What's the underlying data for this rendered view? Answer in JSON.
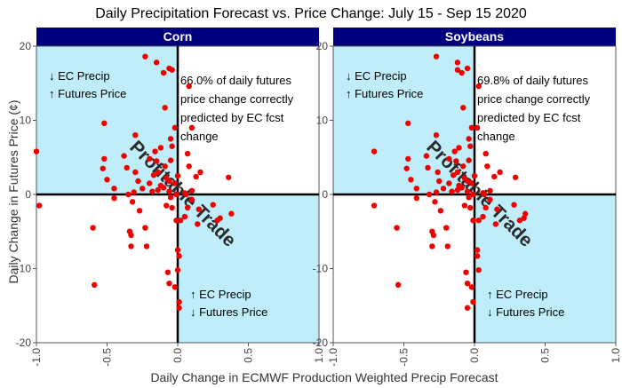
{
  "title": "Daily Precipitation Forecast vs. Price Change: July 15 - Sep 15 2020",
  "ylabel": "Daily Change in Futures Price (¢)",
  "xlabel": "Daily Change in ECMWF Production Weighted Precip Forecast",
  "colors": {
    "strip": "#00007f",
    "quadrant": "#bfeefa",
    "point": "#ee0000",
    "axisline": "#000000"
  },
  "chart_data": [
    {
      "type": "scatter",
      "panel": "Corn",
      "xlim": [
        -1.0,
        1.0
      ],
      "ylim": [
        -20,
        20
      ],
      "x_ticks": [
        "-1.0",
        "-0.5",
        "0.0",
        "0.5",
        "1.0"
      ],
      "y_ticks": [
        "-20",
        "-10",
        "0",
        "10",
        "20"
      ],
      "quadrant_labels": {
        "upper_left": [
          "↓ EC Precip",
          "↑ Futures Price"
        ],
        "lower_right": [
          "↑ EC Precip",
          "↓ Futures Price"
        ]
      },
      "annotation": [
        "66.0% of daily futures",
        "price change correctly",
        "predicted by EC fcst",
        "change"
      ],
      "diagonal_label": "Profitable Trade",
      "points": [
        [
          -1.0,
          5.8
        ],
        [
          -0.98,
          -1.5
        ],
        [
          -0.6,
          -4.5
        ],
        [
          -0.59,
          -12.2
        ],
        [
          -0.52,
          9.6
        ],
        [
          -0.52,
          4.8
        ],
        [
          -0.53,
          3.5
        ],
        [
          -0.5,
          2.0
        ],
        [
          -0.45,
          -0.5
        ],
        [
          -0.45,
          0.8
        ],
        [
          -0.38,
          5.2
        ],
        [
          -0.36,
          3.6
        ],
        [
          -0.35,
          0.0
        ],
        [
          -0.34,
          -5.0
        ],
        [
          -0.33,
          -7.0
        ],
        [
          -0.33,
          -5.5
        ],
        [
          -0.32,
          -1.0
        ],
        [
          -0.31,
          0.3
        ],
        [
          -0.3,
          8.0
        ],
        [
          -0.3,
          3.0
        ],
        [
          -0.28,
          1.8
        ],
        [
          -0.27,
          -2.2
        ],
        [
          -0.25,
          0.8
        ],
        [
          -0.23,
          -4.5
        ],
        [
          -0.22,
          -7.0
        ],
        [
          -0.2,
          1.5
        ],
        [
          -0.2,
          4.8
        ],
        [
          -0.18,
          0.4
        ],
        [
          -0.17,
          2.6
        ],
        [
          -0.16,
          5.8
        ],
        [
          -0.15,
          4.5
        ],
        [
          -0.14,
          3.0
        ],
        [
          -0.12,
          1.2
        ],
        [
          -0.12,
          6.3
        ],
        [
          -0.1,
          0.9
        ],
        [
          -0.09,
          3.8
        ],
        [
          -0.08,
          2.2
        ],
        [
          -0.06,
          0.4
        ],
        [
          -0.23,
          18.6
        ],
        [
          -0.15,
          17.8
        ],
        [
          -0.1,
          16.4
        ],
        [
          -0.09,
          11.7
        ],
        [
          -0.05,
          7.5
        ],
        [
          -0.06,
          17.0
        ],
        [
          -0.05,
          4.6
        ],
        [
          -0.04,
          -1.8
        ],
        [
          -0.02,
          1.5
        ],
        [
          -0.01,
          0.0
        ],
        [
          0.0,
          2.5
        ],
        [
          -0.01,
          -3.5
        ],
        [
          -0.02,
          -12.5
        ],
        [
          -0.07,
          -10.5
        ],
        [
          -0.06,
          -12.0
        ],
        [
          -0.04,
          16.8
        ],
        [
          -0.04,
          6.5
        ],
        [
          -0.02,
          9.0
        ],
        [
          -0.06,
          1.8
        ],
        [
          -0.05,
          -0.4
        ],
        [
          -0.08,
          -1.5
        ],
        [
          -0.14,
          0.6
        ],
        [
          0.0,
          -7.5
        ],
        [
          0.01,
          -8.3
        ],
        [
          0.01,
          -14.5
        ],
        [
          0.01,
          -15.3
        ],
        [
          0.0,
          -10.2
        ],
        [
          0.02,
          -3.5
        ],
        [
          0.05,
          -3.0
        ],
        [
          0.06,
          0.0
        ],
        [
          0.07,
          -1.8
        ],
        [
          0.07,
          5.5
        ],
        [
          0.08,
          3.8
        ],
        [
          0.1,
          0.5
        ],
        [
          0.1,
          9.0
        ],
        [
          0.1,
          -0.7
        ],
        [
          0.13,
          2.4
        ],
        [
          0.14,
          -4.0
        ],
        [
          0.16,
          3.0
        ],
        [
          0.25,
          -1.4
        ],
        [
          0.28,
          -3.5
        ],
        [
          0.3,
          -3.2
        ],
        [
          0.36,
          2.3
        ],
        [
          0.38,
          -2.6
        ],
        [
          0.08,
          14.6
        ],
        [
          0.05,
          0.2
        ],
        [
          0.15,
          -2.0
        ]
      ]
    },
    {
      "type": "scatter",
      "panel": "Soybeans",
      "xlim": [
        -1.0,
        1.0
      ],
      "ylim": [
        -20,
        20
      ],
      "x_ticks": [
        "-1.0",
        "-0.5",
        "0.0",
        "0.5",
        "1.0"
      ],
      "y_ticks": [
        "-20",
        "-10",
        "0",
        "10",
        "20"
      ],
      "quadrant_labels": {
        "upper_left": [
          "↓ EC Precip",
          "↑ Futures Price"
        ],
        "lower_right": [
          "↑ EC Precip",
          "↓ Futures Price"
        ]
      },
      "annotation": [
        "69.8% of daily futures",
        "price change correctly",
        "predicted by EC fcst",
        "change"
      ],
      "diagonal_label": "Profitable Trade",
      "points": [
        [
          -0.71,
          5.8
        ],
        [
          -0.71,
          -1.5
        ],
        [
          -0.55,
          -4.5
        ],
        [
          -0.54,
          -12.2
        ],
        [
          -0.47,
          9.6
        ],
        [
          -0.47,
          4.8
        ],
        [
          -0.48,
          3.5
        ],
        [
          -0.45,
          2.0
        ],
        [
          -0.41,
          -0.5
        ],
        [
          -0.41,
          0.8
        ],
        [
          -0.34,
          5.2
        ],
        [
          -0.33,
          3.6
        ],
        [
          -0.32,
          0.0
        ],
        [
          -0.3,
          -5.0
        ],
        [
          -0.3,
          -7.0
        ],
        [
          -0.29,
          -5.5
        ],
        [
          -0.28,
          -1.0
        ],
        [
          -0.27,
          0.3
        ],
        [
          -0.27,
          8.0
        ],
        [
          -0.26,
          3.0
        ],
        [
          -0.25,
          1.8
        ],
        [
          -0.24,
          -2.2
        ],
        [
          -0.22,
          0.8
        ],
        [
          -0.2,
          -4.5
        ],
        [
          -0.19,
          -7.0
        ],
        [
          -0.18,
          1.5
        ],
        [
          -0.18,
          4.8
        ],
        [
          -0.16,
          0.4
        ],
        [
          -0.15,
          2.6
        ],
        [
          -0.14,
          5.8
        ],
        [
          -0.13,
          4.5
        ],
        [
          -0.12,
          3.0
        ],
        [
          -0.11,
          1.2
        ],
        [
          -0.11,
          6.3
        ],
        [
          -0.09,
          0.9
        ],
        [
          -0.08,
          3.8
        ],
        [
          -0.07,
          2.2
        ],
        [
          -0.05,
          0.4
        ],
        [
          -0.27,
          18.6
        ],
        [
          -0.12,
          17.8
        ],
        [
          -0.09,
          16.4
        ],
        [
          -0.08,
          11.7
        ],
        [
          -0.04,
          7.5
        ],
        [
          -0.05,
          17.0
        ],
        [
          -0.04,
          4.6
        ],
        [
          -0.03,
          -1.8
        ],
        [
          -0.02,
          1.5
        ],
        [
          -0.01,
          0.0
        ],
        [
          0.0,
          2.5
        ],
        [
          -0.01,
          -3.5
        ],
        [
          -0.02,
          -12.5
        ],
        [
          -0.06,
          -10.5
        ],
        [
          -0.05,
          -12.0
        ],
        [
          -0.12,
          16.8
        ],
        [
          -0.03,
          6.5
        ],
        [
          -0.02,
          9.0
        ],
        [
          -0.05,
          1.8
        ],
        [
          -0.04,
          -0.4
        ],
        [
          -0.07,
          -1.5
        ],
        [
          -0.12,
          0.6
        ],
        [
          0.02,
          -7.5
        ],
        [
          0.02,
          -8.3
        ],
        [
          -0.01,
          -14.5
        ],
        [
          -0.05,
          -15.3
        ],
        [
          0.03,
          -10.2
        ],
        [
          0.03,
          -3.5
        ],
        [
          0.06,
          -3.0
        ],
        [
          0.07,
          0.0
        ],
        [
          0.08,
          -1.8
        ],
        [
          0.08,
          5.5
        ],
        [
          0.09,
          3.8
        ],
        [
          0.11,
          0.5
        ],
        [
          0.02,
          9.0
        ],
        [
          0.11,
          -0.7
        ],
        [
          0.14,
          2.4
        ],
        [
          0.15,
          -4.0
        ],
        [
          0.18,
          3.0
        ],
        [
          0.28,
          -1.4
        ],
        [
          0.32,
          -3.5
        ],
        [
          0.35,
          -3.2
        ],
        [
          0.29,
          2.3
        ],
        [
          0.36,
          -2.6
        ],
        [
          0.03,
          14.6
        ],
        [
          0.06,
          0.2
        ],
        [
          0.16,
          -2.0
        ]
      ]
    }
  ]
}
